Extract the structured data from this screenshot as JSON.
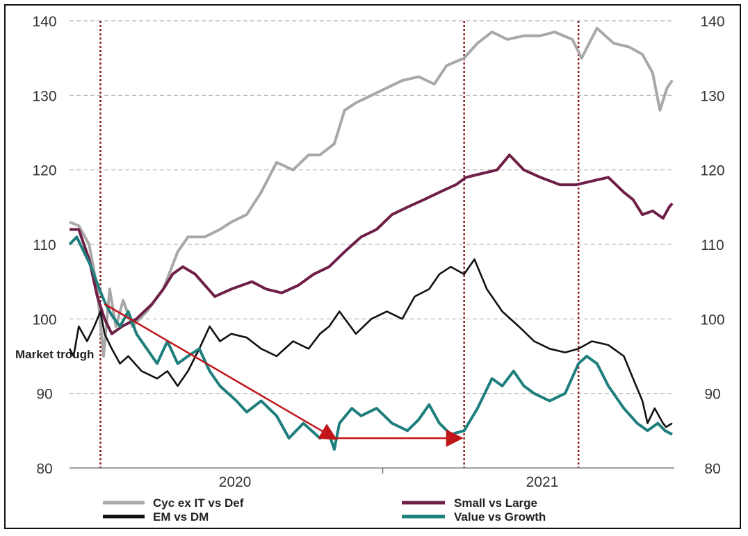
{
  "chart_data": {
    "type": "line",
    "title": "",
    "xlabel": "",
    "ylabel": "",
    "ylim": [
      80,
      140
    ],
    "y_ticks_left": [
      140,
      130,
      120,
      110,
      100,
      90,
      80
    ],
    "y_ticks_right": [
      140,
      130,
      120,
      110,
      100,
      90,
      80
    ],
    "x_range": [
      "2019-09-01",
      "2021-04-10"
    ],
    "x_tick_labels": [
      "2020",
      "2021"
    ],
    "grid": "horizontal dashed",
    "legend_position": "bottom",
    "market_trough_dates": [
      "2019-10-01",
      "2020-09-18",
      "2021-01-07"
    ],
    "annotation": "Market trough",
    "arrows": [
      {
        "from": {
          "x": "2019-10-05",
          "y": 102
        },
        "to": {
          "x": "2020-05-15",
          "y": 84
        }
      },
      {
        "from": {
          "x": "2020-05-15",
          "y": 84
        },
        "to": {
          "x": "2020-09-14",
          "y": 84
        }
      }
    ],
    "series": [
      {
        "name": "Cyc ex IT vs Def",
        "color": "#a8a8a8",
        "points": [
          [
            "2019-09-01",
            113
          ],
          [
            "2019-09-10",
            112.5
          ],
          [
            "2019-09-20",
            110
          ],
          [
            "2019-09-28",
            104
          ],
          [
            "2019-10-04",
            95
          ],
          [
            "2019-10-10",
            104
          ],
          [
            "2019-10-16",
            99
          ],
          [
            "2019-10-23",
            102.5
          ],
          [
            "2019-11-01",
            99
          ],
          [
            "2019-11-15",
            101
          ],
          [
            "2019-12-01",
            104
          ],
          [
            "2019-12-15",
            109
          ],
          [
            "2019-12-25",
            111
          ],
          [
            "2020-01-10",
            111
          ],
          [
            "2020-01-25",
            112
          ],
          [
            "2020-02-05",
            113
          ],
          [
            "2020-02-20",
            114
          ],
          [
            "2020-03-05",
            117
          ],
          [
            "2020-03-20",
            121
          ],
          [
            "2020-04-05",
            120
          ],
          [
            "2020-04-20",
            122
          ],
          [
            "2020-05-01",
            122
          ],
          [
            "2020-05-15",
            123.5
          ],
          [
            "2020-05-25",
            128
          ],
          [
            "2020-06-05",
            129
          ],
          [
            "2020-06-20",
            130
          ],
          [
            "2020-07-05",
            131
          ],
          [
            "2020-07-20",
            132
          ],
          [
            "2020-08-05",
            132.5
          ],
          [
            "2020-08-20",
            131.5
          ],
          [
            "2020-09-01",
            134
          ],
          [
            "2020-09-18",
            135
          ],
          [
            "2020-10-01",
            137
          ],
          [
            "2020-10-15",
            138.5
          ],
          [
            "2020-10-30",
            137.5
          ],
          [
            "2020-11-15",
            138
          ],
          [
            "2020-12-01",
            138
          ],
          [
            "2020-12-15",
            138.5
          ],
          [
            "2021-01-01",
            137.5
          ],
          [
            "2021-01-10",
            135
          ],
          [
            "2021-01-25",
            139
          ],
          [
            "2021-02-10",
            137
          ],
          [
            "2021-02-25",
            136.5
          ],
          [
            "2021-03-10",
            135.5
          ],
          [
            "2021-03-20",
            133
          ],
          [
            "2021-03-27",
            128
          ],
          [
            "2021-04-03",
            131
          ],
          [
            "2021-04-08",
            132
          ]
        ]
      },
      {
        "name": "Small vs Large",
        "color": "#6e1f47",
        "points": [
          [
            "2019-09-01",
            112
          ],
          [
            "2019-09-10",
            112
          ],
          [
            "2019-09-20",
            108
          ],
          [
            "2019-09-28",
            103
          ],
          [
            "2019-10-05",
            100
          ],
          [
            "2019-10-12",
            98
          ],
          [
            "2019-10-22",
            99
          ],
          [
            "2019-11-05",
            100
          ],
          [
            "2019-11-20",
            102
          ],
          [
            "2019-12-01",
            104
          ],
          [
            "2019-12-10",
            106
          ],
          [
            "2019-12-20",
            107
          ],
          [
            "2020-01-01",
            106
          ],
          [
            "2020-01-20",
            103
          ],
          [
            "2020-02-05",
            104
          ],
          [
            "2020-02-25",
            105
          ],
          [
            "2020-03-10",
            104
          ],
          [
            "2020-03-25",
            103.5
          ],
          [
            "2020-04-10",
            104.5
          ],
          [
            "2020-04-25",
            106
          ],
          [
            "2020-05-10",
            107
          ],
          [
            "2020-05-25",
            109
          ],
          [
            "2020-06-10",
            111
          ],
          [
            "2020-06-25",
            112
          ],
          [
            "2020-07-10",
            114
          ],
          [
            "2020-07-25",
            115
          ],
          [
            "2020-08-10",
            116
          ],
          [
            "2020-08-25",
            117
          ],
          [
            "2020-09-10",
            118
          ],
          [
            "2020-09-20",
            119
          ],
          [
            "2020-10-05",
            119.5
          ],
          [
            "2020-10-20",
            120
          ],
          [
            "2020-11-01",
            122
          ],
          [
            "2020-11-15",
            120
          ],
          [
            "2020-12-01",
            119
          ],
          [
            "2020-12-20",
            118
          ],
          [
            "2021-01-05",
            118
          ],
          [
            "2021-01-20",
            118.5
          ],
          [
            "2021-02-05",
            119
          ],
          [
            "2021-02-20",
            117
          ],
          [
            "2021-03-01",
            116
          ],
          [
            "2021-03-10",
            114
          ],
          [
            "2021-03-20",
            114.5
          ],
          [
            "2021-03-30",
            113.5
          ],
          [
            "2021-04-05",
            115
          ],
          [
            "2021-04-08",
            115.5
          ]
        ]
      },
      {
        "name": "EM vs DM",
        "color": "#111111",
        "points": [
          [
            "2019-09-01",
            96
          ],
          [
            "2019-09-05",
            95
          ],
          [
            "2019-09-10",
            99
          ],
          [
            "2019-09-18",
            97
          ],
          [
            "2019-09-25",
            99
          ],
          [
            "2019-10-01",
            101
          ],
          [
            "2019-10-05",
            98
          ],
          [
            "2019-10-12",
            96
          ],
          [
            "2019-10-20",
            94
          ],
          [
            "2019-10-28",
            95
          ],
          [
            "2019-11-10",
            93
          ],
          [
            "2019-11-25",
            92
          ],
          [
            "2019-12-05",
            93
          ],
          [
            "2019-12-15",
            91
          ],
          [
            "2019-12-25",
            93
          ],
          [
            "2020-01-05",
            96
          ],
          [
            "2020-01-15",
            99
          ],
          [
            "2020-01-25",
            97
          ],
          [
            "2020-02-05",
            98
          ],
          [
            "2020-02-20",
            97.5
          ],
          [
            "2020-03-05",
            96
          ],
          [
            "2020-03-20",
            95
          ],
          [
            "2020-04-05",
            97
          ],
          [
            "2020-04-20",
            96
          ],
          [
            "2020-05-01",
            98
          ],
          [
            "2020-05-10",
            99
          ],
          [
            "2020-05-20",
            101
          ],
          [
            "2020-06-05",
            98
          ],
          [
            "2020-06-20",
            100
          ],
          [
            "2020-07-05",
            101
          ],
          [
            "2020-07-20",
            100
          ],
          [
            "2020-08-01",
            103
          ],
          [
            "2020-08-15",
            104
          ],
          [
            "2020-08-25",
            106
          ],
          [
            "2020-09-05",
            107
          ],
          [
            "2020-09-18",
            106
          ],
          [
            "2020-09-28",
            108
          ],
          [
            "2020-10-10",
            104
          ],
          [
            "2020-10-25",
            101
          ],
          [
            "2020-11-10",
            99
          ],
          [
            "2020-11-25",
            97
          ],
          [
            "2020-12-10",
            96
          ],
          [
            "2020-12-25",
            95.5
          ],
          [
            "2021-01-07",
            96
          ],
          [
            "2021-01-20",
            97
          ],
          [
            "2021-02-05",
            96.5
          ],
          [
            "2021-02-20",
            95
          ],
          [
            "2021-03-01",
            92
          ],
          [
            "2021-03-10",
            89
          ],
          [
            "2021-03-15",
            86
          ],
          [
            "2021-03-22",
            88
          ],
          [
            "2021-03-30",
            86
          ],
          [
            "2021-04-02",
            85.5
          ],
          [
            "2021-04-08",
            86
          ]
        ]
      },
      {
        "name": "Value vs Growth",
        "color": "#1e7f7c",
        "points": [
          [
            "2019-09-01",
            110
          ],
          [
            "2019-09-08",
            111
          ],
          [
            "2019-09-15",
            109
          ],
          [
            "2019-09-22",
            107
          ],
          [
            "2019-09-30",
            104
          ],
          [
            "2019-10-06",
            102
          ],
          [
            "2019-10-12",
            100.5
          ],
          [
            "2019-10-20",
            99
          ],
          [
            "2019-10-28",
            101
          ],
          [
            "2019-11-05",
            98
          ],
          [
            "2019-11-15",
            96
          ],
          [
            "2019-11-25",
            94
          ],
          [
            "2019-12-05",
            97
          ],
          [
            "2019-12-15",
            94
          ],
          [
            "2019-12-25",
            95
          ],
          [
            "2020-01-05",
            96
          ],
          [
            "2020-01-15",
            93
          ],
          [
            "2020-01-25",
            91
          ],
          [
            "2020-02-10",
            89
          ],
          [
            "2020-02-20",
            87.5
          ],
          [
            "2020-03-05",
            89
          ],
          [
            "2020-03-20",
            87
          ],
          [
            "2020-04-01",
            84
          ],
          [
            "2020-04-15",
            86
          ],
          [
            "2020-05-01",
            84
          ],
          [
            "2020-05-10",
            84.5
          ],
          [
            "2020-05-15",
            82.5
          ],
          [
            "2020-05-20",
            86
          ],
          [
            "2020-06-01",
            88
          ],
          [
            "2020-06-10",
            87
          ],
          [
            "2020-06-25",
            88
          ],
          [
            "2020-07-10",
            86
          ],
          [
            "2020-07-25",
            85
          ],
          [
            "2020-08-05",
            86.5
          ],
          [
            "2020-08-15",
            88.5
          ],
          [
            "2020-08-25",
            86
          ],
          [
            "2020-09-05",
            84.5
          ],
          [
            "2020-09-18",
            85
          ],
          [
            "2020-10-01",
            88
          ],
          [
            "2020-10-15",
            92
          ],
          [
            "2020-10-25",
            91
          ],
          [
            "2020-11-05",
            93
          ],
          [
            "2020-11-15",
            91
          ],
          [
            "2020-11-25",
            90
          ],
          [
            "2020-12-10",
            89
          ],
          [
            "2020-12-25",
            90
          ],
          [
            "2021-01-07",
            94
          ],
          [
            "2021-01-15",
            95
          ],
          [
            "2021-01-25",
            94
          ],
          [
            "2021-02-05",
            91
          ],
          [
            "2021-02-20",
            88
          ],
          [
            "2021-03-05",
            86
          ],
          [
            "2021-03-15",
            85
          ],
          [
            "2021-03-25",
            86
          ],
          [
            "2021-04-01",
            85
          ],
          [
            "2021-04-08",
            84.5
          ]
        ]
      }
    ]
  }
}
